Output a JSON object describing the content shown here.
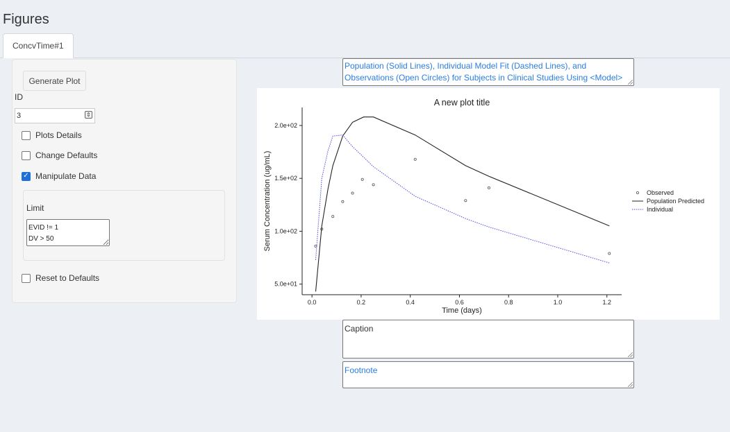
{
  "page": {
    "title": "Figures"
  },
  "tabs": [
    {
      "label": "ConcvTime#1"
    }
  ],
  "sidebar": {
    "generate_button": "Generate Plot",
    "id_label": "ID",
    "id_value": "3",
    "options": [
      {
        "label": "Plots Details",
        "checked": false
      },
      {
        "label": "Change Defaults",
        "checked": false
      },
      {
        "label": "Manipulate Data",
        "checked": true
      }
    ],
    "limit_label": "Limit",
    "limit_value": "EVID != 1\nDV > 50",
    "reset_label": "Reset to Defaults",
    "reset_checked": false
  },
  "figure": {
    "title_text": "Population (Solid Lines), Individual Model Fit (Dashed Lines), and Observations (Open Circles) for Subjects in Clinical Studies Using <Model>",
    "caption_text": "Caption",
    "footnote_text": "Footnote"
  },
  "chart_data": {
    "type": "line",
    "title": "A new plot title",
    "xlabel": "Time (days)",
    "ylabel": "Serum Concentration (ug/mL)",
    "xlim": [
      -0.04,
      1.26
    ],
    "ylim": [
      40,
      217
    ],
    "x_ticks": [
      0.0,
      0.2,
      0.4,
      0.6,
      0.8,
      1.0,
      1.2
    ],
    "x_tick_labels": [
      "0.0",
      "0.2",
      "0.4",
      "0.6",
      "0.8",
      "1.0",
      "1.2"
    ],
    "y_ticks": [
      50,
      100,
      150,
      200
    ],
    "y_tick_labels": [
      "5.0e+01",
      "1.0e+02",
      "1.5e+02",
      "2.0e+02"
    ],
    "legend_position": "right",
    "series": [
      {
        "name": "Observed",
        "style": "points",
        "color": "#555555",
        "x": [
          0.015,
          0.04,
          0.085,
          0.125,
          0.165,
          0.205,
          0.25,
          0.42,
          0.625,
          0.72,
          1.21
        ],
        "y": [
          86,
          102,
          114,
          128,
          136,
          149,
          144,
          168,
          129,
          141,
          79
        ]
      },
      {
        "name": "Population Predicted",
        "style": "solid",
        "color": "#222222",
        "x": [
          0.015,
          0.04,
          0.065,
          0.085,
          0.125,
          0.165,
          0.21,
          0.25,
          0.42,
          0.625,
          0.72,
          1.21
        ],
        "y": [
          43,
          105,
          140,
          162,
          190,
          203,
          208,
          208,
          191,
          162,
          152,
          105
        ]
      },
      {
        "name": "Individual",
        "style": "dotted",
        "color": "#4a4ae6",
        "x": [
          0.015,
          0.04,
          0.065,
          0.085,
          0.125,
          0.165,
          0.21,
          0.25,
          0.42,
          0.625,
          0.72,
          1.21
        ],
        "y": [
          73,
          150,
          176,
          190,
          191,
          180,
          170,
          161,
          133,
          112,
          104,
          70
        ]
      }
    ]
  }
}
